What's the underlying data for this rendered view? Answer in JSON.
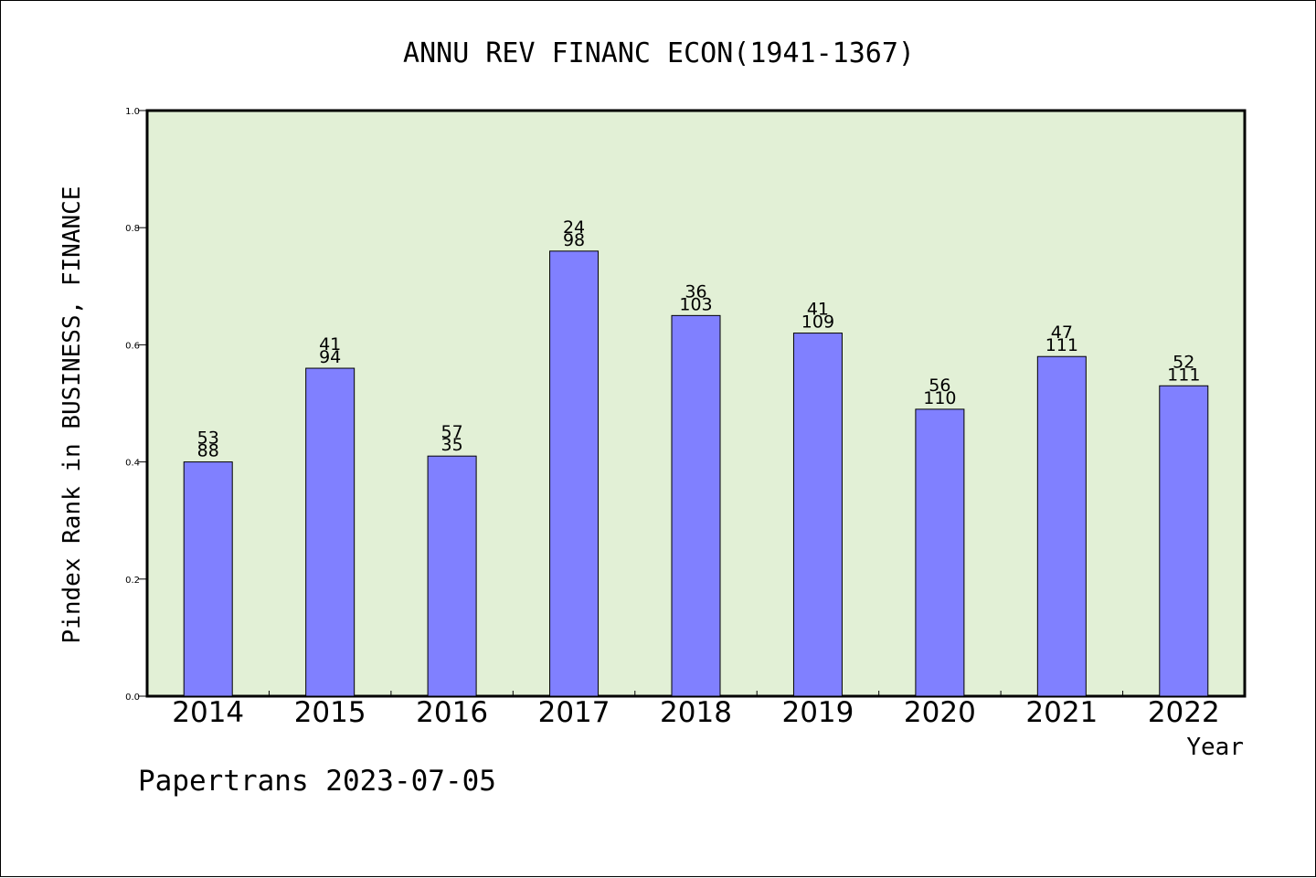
{
  "chart_data": {
    "type": "bar",
    "title": "ANNU REV FINANC ECON(1941-1367)",
    "xlabel": "Year",
    "ylabel": "Pindex Rank in BUSINESS, FINANCE",
    "categories": [
      "2014",
      "2015",
      "2016",
      "2017",
      "2018",
      "2019",
      "2020",
      "2021",
      "2022"
    ],
    "values": [
      0.4,
      0.56,
      0.41,
      0.76,
      0.65,
      0.62,
      0.49,
      0.58,
      0.53
    ],
    "label_top": [
      "53",
      "41",
      "57",
      "24",
      "36",
      "41",
      "56",
      "47",
      "52"
    ],
    "label_bottom": [
      "88",
      "94",
      "35",
      "98",
      "103",
      "109",
      "110",
      "111",
      "111"
    ],
    "ylim": [
      0,
      1.0
    ],
    "yticks": [
      "0.0",
      "0.2",
      "0.4",
      "0.6",
      "0.8",
      "1.0"
    ],
    "grid": false,
    "colors": {
      "plot_background": "#e2f0d6",
      "bar_fill": "#8080ff",
      "bar_stroke": "#000000"
    }
  },
  "footer": {
    "credit": "Papertrans 2023-07-05"
  }
}
